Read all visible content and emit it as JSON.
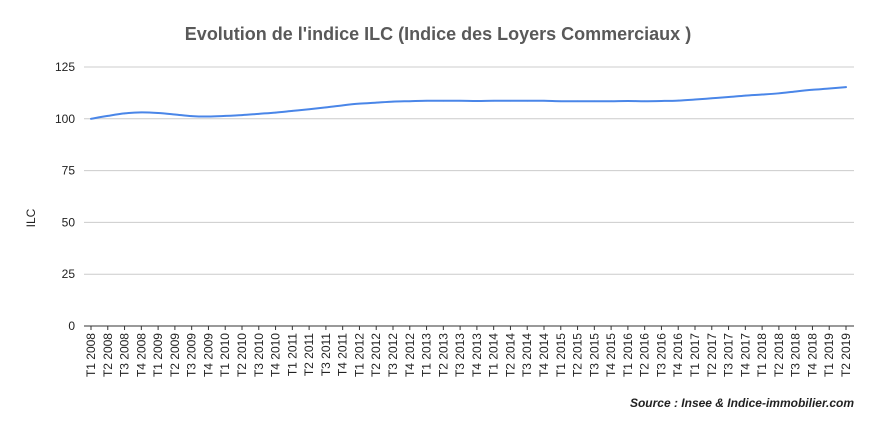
{
  "chart_data": {
    "type": "line",
    "title": "Evolution de l'indice ILC (Indice des Loyers Commerciaux )",
    "xlabel": "",
    "ylabel": "ILC",
    "ylim": [
      0,
      125
    ],
    "yticks": [
      0,
      25,
      50,
      75,
      100,
      125
    ],
    "grid": true,
    "categories": [
      "T1 2008",
      "T2 2008",
      "T3 2008",
      "T4 2008",
      "T1 2009",
      "T2 2009",
      "T3 2009",
      "T4 2009",
      "T1 2010",
      "T2 2010",
      "T3 2010",
      "T4 2010",
      "T1 2011",
      "T2 2011",
      "T3 2011",
      "T4 2011",
      "T1 2012",
      "T2 2012",
      "T3 2012",
      "T4 2012",
      "T1 2013",
      "T2 2013",
      "T3 2013",
      "T4 2013",
      "T1 2014",
      "T2 2014",
      "T3 2014",
      "T4 2014",
      "T1 2015",
      "T2 2015",
      "T3 2015",
      "T4 2015",
      "T1 2016",
      "T2 2016",
      "T3 2016",
      "T4 2016",
      "T1 2017",
      "T2 2017",
      "T3 2017",
      "T4 2017",
      "T1 2018",
      "T2 2018",
      "T3 2018",
      "T4 2018",
      "T1 2019",
      "T2 2019"
    ],
    "series": [
      {
        "name": "",
        "color": "#4a86e8",
        "values": [
          100.0,
          101.4,
          102.6,
          103.1,
          102.8,
          102.1,
          101.3,
          101.1,
          101.4,
          101.8,
          102.4,
          103.0,
          103.8,
          104.6,
          105.5,
          106.5,
          107.3,
          107.8,
          108.3,
          108.5,
          108.7,
          108.7,
          108.7,
          108.6,
          108.7,
          108.7,
          108.7,
          108.7,
          108.5,
          108.5,
          108.5,
          108.5,
          108.6,
          108.5,
          108.6,
          108.8,
          109.3,
          109.9,
          110.5,
          111.2,
          111.7,
          112.3,
          113.2,
          114.0,
          114.6,
          115.3
        ]
      }
    ]
  },
  "footer": {
    "source": "Source : Insee & Indice-immobilier.com"
  }
}
